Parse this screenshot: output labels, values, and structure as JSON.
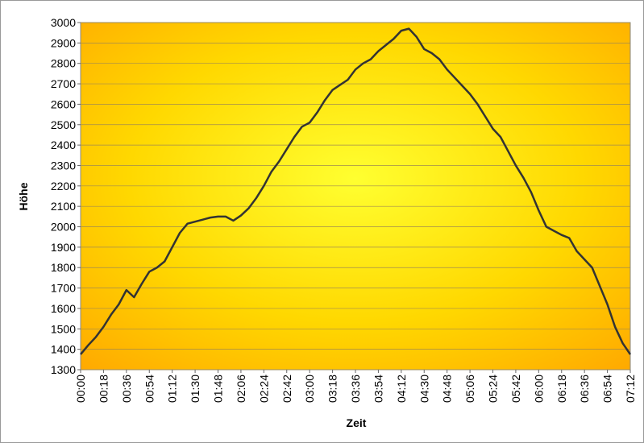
{
  "chart_data": {
    "type": "line",
    "x_label": "Zeit",
    "y_label": "Höhe",
    "categories": [
      "00:00",
      null,
      null,
      "00:18",
      null,
      null,
      "00:36",
      null,
      null,
      "00:54",
      null,
      null,
      "01:12",
      null,
      null,
      "01:30",
      null,
      null,
      "01:48",
      null,
      null,
      "02:06",
      null,
      null,
      "02:24",
      null,
      null,
      "02:42",
      null,
      null,
      "03:00",
      null,
      null,
      "03:18",
      null,
      null,
      "03:36",
      null,
      null,
      "03:54",
      null,
      null,
      "04:12",
      null,
      null,
      "04:30",
      null,
      null,
      "04:48",
      null,
      null,
      "05:06",
      null,
      null,
      "05:24",
      null,
      null,
      "05:42",
      null,
      null,
      "06:00",
      null,
      null,
      "06:18",
      null,
      null,
      "06:36",
      null,
      null,
      "06:54",
      null,
      null,
      "07:12"
    ],
    "values": [
      1375,
      1420,
      1460,
      1510,
      1570,
      1620,
      1690,
      1655,
      1720,
      1780,
      1800,
      1830,
      1900,
      1970,
      2015,
      2025,
      2035,
      2045,
      2050,
      2050,
      2030,
      2055,
      2090,
      2140,
      2200,
      2270,
      2320,
      2380,
      2440,
      2490,
      2510,
      2560,
      2620,
      2670,
      2695,
      2720,
      2770,
      2800,
      2820,
      2860,
      2890,
      2920,
      2960,
      2970,
      2930,
      2870,
      2850,
      2820,
      2770,
      2730,
      2690,
      2650,
      2600,
      2540,
      2480,
      2440,
      2370,
      2300,
      2240,
      2170,
      2080,
      2000,
      1980,
      1960,
      1945,
      1880,
      1840,
      1800,
      1710,
      1620,
      1510,
      1430,
      1375
    ],
    "color": "#333333",
    "ylim": [
      1300,
      3000
    ],
    "yticks": [
      1300,
      1400,
      1500,
      1600,
      1700,
      1800,
      1900,
      2000,
      2100,
      2200,
      2300,
      2400,
      2500,
      2600,
      2700,
      2800,
      2900,
      3000
    ],
    "grid": true
  }
}
